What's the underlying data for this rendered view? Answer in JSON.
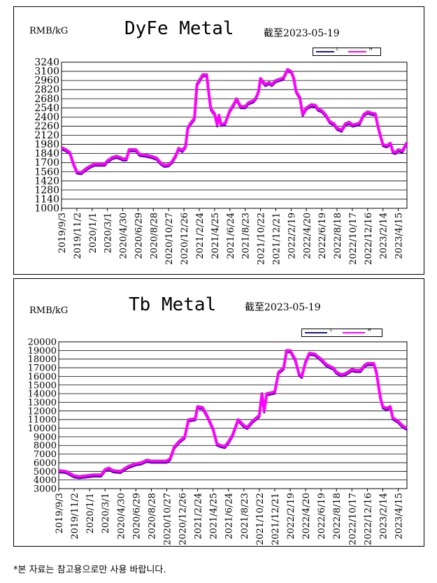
{
  "footnote": "*본 자료는 참고용으로만 사용 바랍니다.",
  "chart_data": [
    {
      "type": "line",
      "title": "DyFe Metal",
      "unit_label": "RMB/kG",
      "as_of": "截至2023-05-19",
      "ylim": [
        1000,
        3240
      ],
      "yticks": [
        1000,
        1140,
        1280,
        1420,
        1560,
        1700,
        1840,
        1980,
        2120,
        2260,
        2400,
        2540,
        2680,
        2820,
        2960,
        3100,
        3240
      ],
      "x_tick_labels": [
        "2019/9/3",
        "2019/11/2",
        "2020/1/1",
        "2020/3/1",
        "2020/4/30",
        "2020/6/29",
        "2020/8/28",
        "2020/10/27",
        "2020/12/26",
        "2021/2/24",
        "2021/4/25",
        "2021/6/24",
        "2021/8/23",
        "2021/10/22",
        "2021/12/21",
        "2022/2/19",
        "2022/4/20",
        "2022/6/19",
        "2022/8/18",
        "2022/10/17",
        "2022/12/16",
        "2023/2/14",
        "2023/4/15"
      ],
      "x_range": [
        "2019-09-03",
        "2023-05-19"
      ],
      "grid": "horizontal",
      "legend": "top-right",
      "series": [
        {
          "name": "L",
          "color": "#1a1a80"
        },
        {
          "name": "H",
          "color": "#ff00ff"
        }
      ],
      "points": [
        [
          "2019-09-03",
          1930
        ],
        [
          "2019-09-20",
          1900
        ],
        [
          "2019-10-05",
          1860
        ],
        [
          "2019-10-20",
          1680
        ],
        [
          "2019-11-02",
          1560
        ],
        [
          "2019-11-20",
          1550
        ],
        [
          "2019-12-05",
          1600
        ],
        [
          "2019-12-25",
          1650
        ],
        [
          "2020-01-10",
          1680
        ],
        [
          "2020-02-01",
          1680
        ],
        [
          "2020-02-20",
          1680
        ],
        [
          "2020-03-01",
          1730
        ],
        [
          "2020-03-20",
          1780
        ],
        [
          "2020-04-05",
          1800
        ],
        [
          "2020-04-20",
          1780
        ],
        [
          "2020-04-30",
          1760
        ],
        [
          "2020-05-15",
          1760
        ],
        [
          "2020-05-25",
          1900
        ],
        [
          "2020-06-20",
          1900
        ],
        [
          "2020-07-05",
          1830
        ],
        [
          "2020-07-25",
          1820
        ],
        [
          "2020-08-20",
          1800
        ],
        [
          "2020-09-10",
          1770
        ],
        [
          "2020-09-25",
          1700
        ],
        [
          "2020-10-10",
          1660
        ],
        [
          "2020-10-27",
          1670
        ],
        [
          "2020-11-10",
          1720
        ],
        [
          "2020-11-25",
          1820
        ],
        [
          "2020-12-05",
          1920
        ],
        [
          "2020-12-20",
          1890
        ],
        [
          "2021-01-01",
          1950
        ],
        [
          "2021-01-10",
          2230
        ],
        [
          "2021-01-20",
          2300
        ],
        [
          "2021-02-05",
          2380
        ],
        [
          "2021-02-15",
          2900
        ],
        [
          "2021-02-24",
          2960
        ],
        [
          "2021-03-10",
          3050
        ],
        [
          "2021-03-25",
          3050
        ],
        [
          "2021-04-01",
          2800
        ],
        [
          "2021-04-10",
          2530
        ],
        [
          "2021-04-25",
          2450
        ],
        [
          "2021-05-05",
          2280
        ],
        [
          "2021-05-12",
          2430
        ],
        [
          "2021-05-20",
          2290
        ],
        [
          "2021-06-05",
          2300
        ],
        [
          "2021-06-24",
          2500
        ],
        [
          "2021-07-10",
          2600
        ],
        [
          "2021-07-20",
          2680
        ],
        [
          "2021-08-05",
          2560
        ],
        [
          "2021-08-23",
          2560
        ],
        [
          "2021-09-05",
          2620
        ],
        [
          "2021-09-25",
          2650
        ],
        [
          "2021-10-05",
          2700
        ],
        [
          "2021-10-15",
          2800
        ],
        [
          "2021-10-22",
          2990
        ],
        [
          "2021-11-10",
          2900
        ],
        [
          "2021-11-25",
          2930
        ],
        [
          "2021-12-05",
          2900
        ],
        [
          "2021-12-21",
          2960
        ],
        [
          "2022-01-05",
          2980
        ],
        [
          "2022-01-20",
          3000
        ],
        [
          "2022-02-05",
          3130
        ],
        [
          "2022-02-19",
          3100
        ],
        [
          "2022-03-01",
          3000
        ],
        [
          "2022-03-10",
          2800
        ],
        [
          "2022-03-25",
          2700
        ],
        [
          "2022-04-05",
          2440
        ],
        [
          "2022-04-20",
          2540
        ],
        [
          "2022-05-10",
          2590
        ],
        [
          "2022-05-25",
          2580
        ],
        [
          "2022-06-05",
          2520
        ],
        [
          "2022-06-19",
          2500
        ],
        [
          "2022-07-05",
          2430
        ],
        [
          "2022-07-20",
          2330
        ],
        [
          "2022-08-05",
          2300
        ],
        [
          "2022-08-18",
          2230
        ],
        [
          "2022-09-05",
          2200
        ],
        [
          "2022-09-20",
          2300
        ],
        [
          "2022-10-05",
          2320
        ],
        [
          "2022-10-17",
          2280
        ],
        [
          "2022-11-01",
          2290
        ],
        [
          "2022-11-15",
          2310
        ],
        [
          "2022-12-01",
          2440
        ],
        [
          "2022-12-16",
          2480
        ],
        [
          "2023-01-01",
          2460
        ],
        [
          "2023-01-15",
          2450
        ],
        [
          "2023-01-25",
          2260
        ],
        [
          "2023-02-05",
          2100
        ],
        [
          "2023-02-14",
          1980
        ],
        [
          "2023-03-01",
          1960
        ],
        [
          "2023-03-15",
          2000
        ],
        [
          "2023-03-25",
          1870
        ],
        [
          "2023-04-05",
          1860
        ],
        [
          "2023-04-15",
          1900
        ],
        [
          "2023-05-01",
          1880
        ],
        [
          "2023-05-19",
          2010
        ]
      ]
    },
    {
      "type": "line",
      "title": "Tb Metal",
      "unit_label": "RMB/kG",
      "as_of": "截至2023-05-19",
      "ylim": [
        3000,
        20000
      ],
      "yticks": [
        3000,
        4000,
        5000,
        6000,
        7000,
        8000,
        9000,
        10000,
        11000,
        12000,
        13000,
        14000,
        15000,
        16000,
        17000,
        18000,
        19000,
        20000
      ],
      "x_tick_labels": [
        "2019/9/3",
        "2019/11/2",
        "2020/1/1",
        "2020/3/1",
        "2020/4/30",
        "2020/6/29",
        "2020/8/28",
        "2020/10/27",
        "2020/12/26",
        "2021/2/24",
        "2021/4/25",
        "2021/6/24",
        "2021/8/23",
        "2021/10/22",
        "2021/12/21",
        "2022/2/19",
        "2022/4/20",
        "2022/6/19",
        "2022/8/18",
        "2022/10/17",
        "2022/12/16",
        "2023/2/14",
        "2023/4/15"
      ],
      "x_range": [
        "2019-09-03",
        "2023-05-19"
      ],
      "grid": "horizontal",
      "legend": "top-right",
      "series": [
        {
          "name": "L",
          "color": "#1a1a80"
        },
        {
          "name": "H",
          "color": "#ff00ff"
        }
      ],
      "points": [
        [
          "2019-09-03",
          5100
        ],
        [
          "2019-10-01",
          5000
        ],
        [
          "2019-11-02",
          4500
        ],
        [
          "2019-11-20",
          4400
        ],
        [
          "2019-12-20",
          4500
        ],
        [
          "2020-01-15",
          4600
        ],
        [
          "2020-02-15",
          4600
        ],
        [
          "2020-03-01",
          5200
        ],
        [
          "2020-03-15",
          5400
        ],
        [
          "2020-04-01",
          5100
        ],
        [
          "2020-04-30",
          5000
        ],
        [
          "2020-05-15",
          5300
        ],
        [
          "2020-06-01",
          5600
        ],
        [
          "2020-06-29",
          5900
        ],
        [
          "2020-07-20",
          6000
        ],
        [
          "2020-08-10",
          6300
        ],
        [
          "2020-08-28",
          6200
        ],
        [
          "2020-09-20",
          6200
        ],
        [
          "2020-10-27",
          6200
        ],
        [
          "2020-11-10",
          6500
        ],
        [
          "2020-11-25",
          7800
        ],
        [
          "2020-12-15",
          8500
        ],
        [
          "2021-01-05",
          9000
        ],
        [
          "2021-01-20",
          11000
        ],
        [
          "2021-02-15",
          11100
        ],
        [
          "2021-02-24",
          12500
        ],
        [
          "2021-03-15",
          12400
        ],
        [
          "2021-04-01",
          11500
        ],
        [
          "2021-04-25",
          9900
        ],
        [
          "2021-05-10",
          8200
        ],
        [
          "2021-05-25",
          8000
        ],
        [
          "2021-06-10",
          7900
        ],
        [
          "2021-06-24",
          8400
        ],
        [
          "2021-07-10",
          9200
        ],
        [
          "2021-08-01",
          11000
        ],
        [
          "2021-08-23",
          10300
        ],
        [
          "2021-09-05",
          10100
        ],
        [
          "2021-09-25",
          10800
        ],
        [
          "2021-10-22",
          11500
        ],
        [
          "2021-11-01",
          14000
        ],
        [
          "2021-11-10",
          12000
        ],
        [
          "2021-11-20",
          14000
        ],
        [
          "2021-12-21",
          14200
        ],
        [
          "2022-01-05",
          16500
        ],
        [
          "2022-01-25",
          17000
        ],
        [
          "2022-02-05",
          19000
        ],
        [
          "2022-02-19",
          19000
        ],
        [
          "2022-03-10",
          18000
        ],
        [
          "2022-03-25",
          16300
        ],
        [
          "2022-04-05",
          16000
        ],
        [
          "2022-04-20",
          17700
        ],
        [
          "2022-05-05",
          18700
        ],
        [
          "2022-05-25",
          18600
        ],
        [
          "2022-06-19",
          18000
        ],
        [
          "2022-07-05",
          17500
        ],
        [
          "2022-07-20",
          17200
        ],
        [
          "2022-08-05",
          17000
        ],
        [
          "2022-08-18",
          16500
        ],
        [
          "2022-09-05",
          16200
        ],
        [
          "2022-09-20",
          16300
        ],
        [
          "2022-10-01",
          16500
        ],
        [
          "2022-10-17",
          16800
        ],
        [
          "2022-11-01",
          16700
        ],
        [
          "2022-11-20",
          16700
        ],
        [
          "2022-12-05",
          17300
        ],
        [
          "2022-12-16",
          17500
        ],
        [
          "2023-01-10",
          17500
        ],
        [
          "2023-01-20",
          16500
        ],
        [
          "2023-02-05",
          13500
        ],
        [
          "2023-02-14",
          12500
        ],
        [
          "2023-03-01",
          12300
        ],
        [
          "2023-03-15",
          12500
        ],
        [
          "2023-03-25",
          11200
        ],
        [
          "2023-04-15",
          10800
        ],
        [
          "2023-05-01",
          10300
        ],
        [
          "2023-05-19",
          10000
        ]
      ]
    }
  ]
}
